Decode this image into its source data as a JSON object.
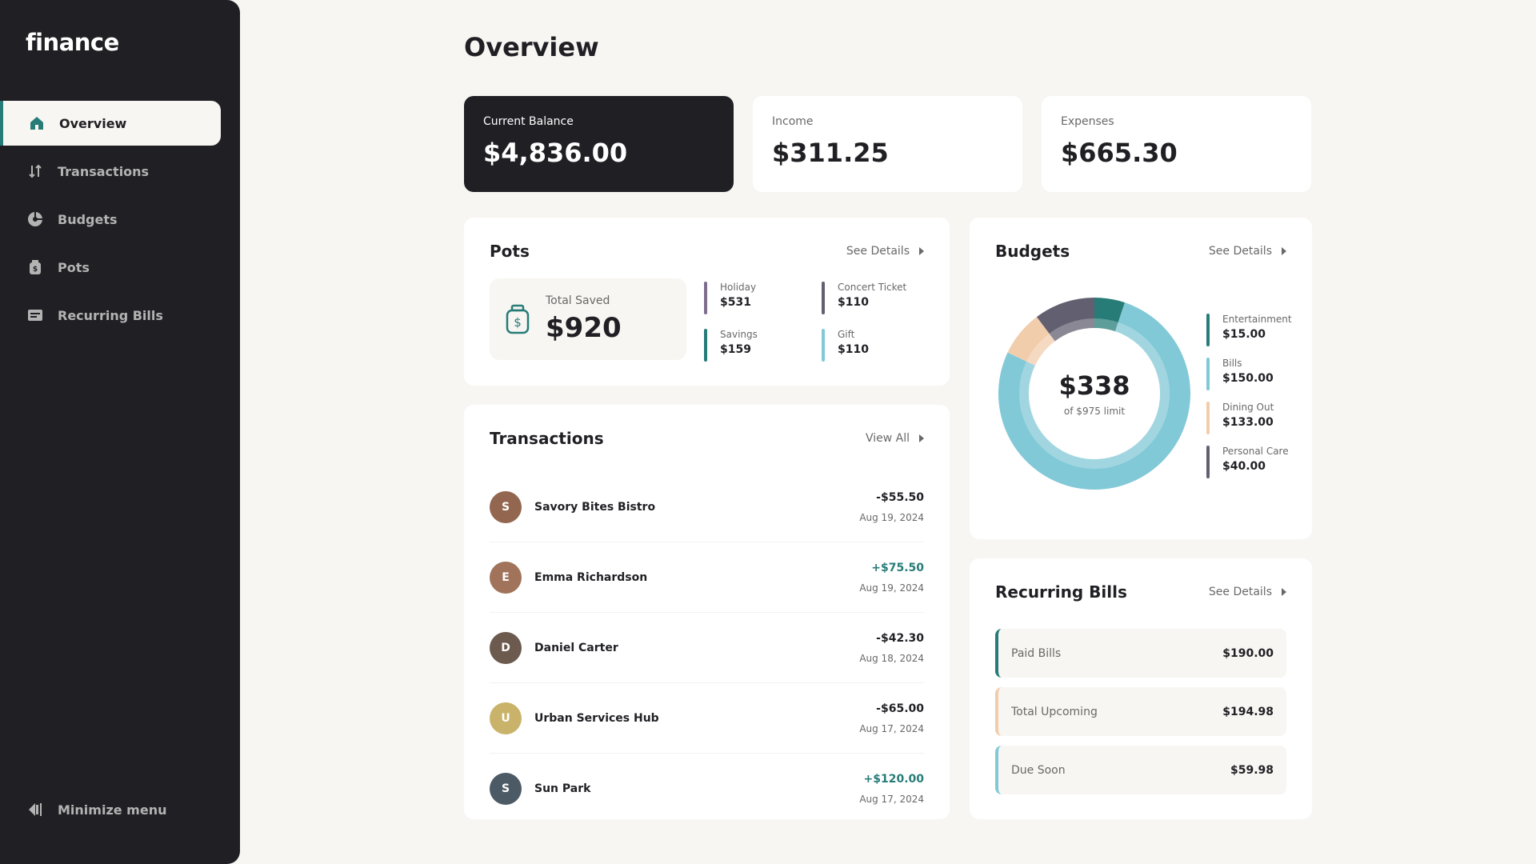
{
  "app": {
    "logo": "finance"
  },
  "sidebar": {
    "items": [
      {
        "label": "Overview",
        "icon": "home-icon",
        "active": true
      },
      {
        "label": "Transactions",
        "icon": "arrows-up-down-icon"
      },
      {
        "label": "Budgets",
        "icon": "pie-chart-icon"
      },
      {
        "label": "Pots",
        "icon": "jar-icon"
      },
      {
        "label": "Recurring Bills",
        "icon": "receipt-icon"
      }
    ],
    "minimize_label": "Minimize menu"
  },
  "page": {
    "title": "Overview"
  },
  "summary": {
    "balance": {
      "label": "Current Balance",
      "value": "$4,836.00"
    },
    "income": {
      "label": "Income",
      "value": "$311.25"
    },
    "expenses": {
      "label": "Expenses",
      "value": "$665.30"
    }
  },
  "pots": {
    "title": "Pots",
    "link": "See Details",
    "total_label": "Total Saved",
    "total_value": "$920",
    "items": [
      {
        "name": "Holiday",
        "amount": "$531",
        "color": "#7f6d8d"
      },
      {
        "name": "Concert Ticket",
        "amount": "$110",
        "color": "#626070"
      },
      {
        "name": "Savings",
        "amount": "$159",
        "color": "#277c78"
      },
      {
        "name": "Gift",
        "amount": "$110",
        "color": "#82c9d7"
      }
    ]
  },
  "transactions": {
    "title": "Transactions",
    "link": "View All",
    "items": [
      {
        "name": "Savory Bites Bistro",
        "amount": "-$55.50",
        "date": "Aug 19, 2024",
        "positive": false,
        "avatar_color": "#93674f",
        "initials": "S"
      },
      {
        "name": "Emma Richardson",
        "amount": "+$75.50",
        "date": "Aug 19, 2024",
        "positive": true,
        "avatar_color": "#a0735a",
        "initials": "E"
      },
      {
        "name": "Daniel Carter",
        "amount": "-$42.30",
        "date": "Aug 18, 2024",
        "positive": false,
        "avatar_color": "#6b5a4d",
        "initials": "D"
      },
      {
        "name": "Urban Services Hub",
        "amount": "-$65.00",
        "date": "Aug 17, 2024",
        "positive": false,
        "avatar_color": "#c9b36a",
        "initials": "U"
      },
      {
        "name": "Sun Park",
        "amount": "+$120.00",
        "date": "Aug 17, 2024",
        "positive": true,
        "avatar_color": "#4c5a66",
        "initials": "S"
      }
    ]
  },
  "budgets": {
    "title": "Budgets",
    "link": "See Details",
    "spent": "$338",
    "limit_text": "of $975 limit",
    "items": [
      {
        "name": "Entertainment",
        "amount": "$15.00",
        "value": 50,
        "color": "#277c78"
      },
      {
        "name": "Bills",
        "amount": "$150.00",
        "value": 750,
        "color": "#82c9d7"
      },
      {
        "name": "Dining Out",
        "amount": "$133.00",
        "value": 75,
        "color": "#f2cdac"
      },
      {
        "name": "Personal Care",
        "amount": "$40.00",
        "value": 100,
        "color": "#626070"
      }
    ]
  },
  "recurring": {
    "title": "Recurring Bills",
    "link": "See Details",
    "items": [
      {
        "label": "Paid Bills",
        "amount": "$190.00",
        "color": "#277c78"
      },
      {
        "label": "Total Upcoming",
        "amount": "$194.98",
        "color": "#f2cdac"
      },
      {
        "label": "Due Soon",
        "amount": "$59.98",
        "color": "#82c9d7"
      }
    ]
  },
  "colors": {
    "dark": "#201f24",
    "accent": "#277c78",
    "background": "#f8f6f2"
  }
}
